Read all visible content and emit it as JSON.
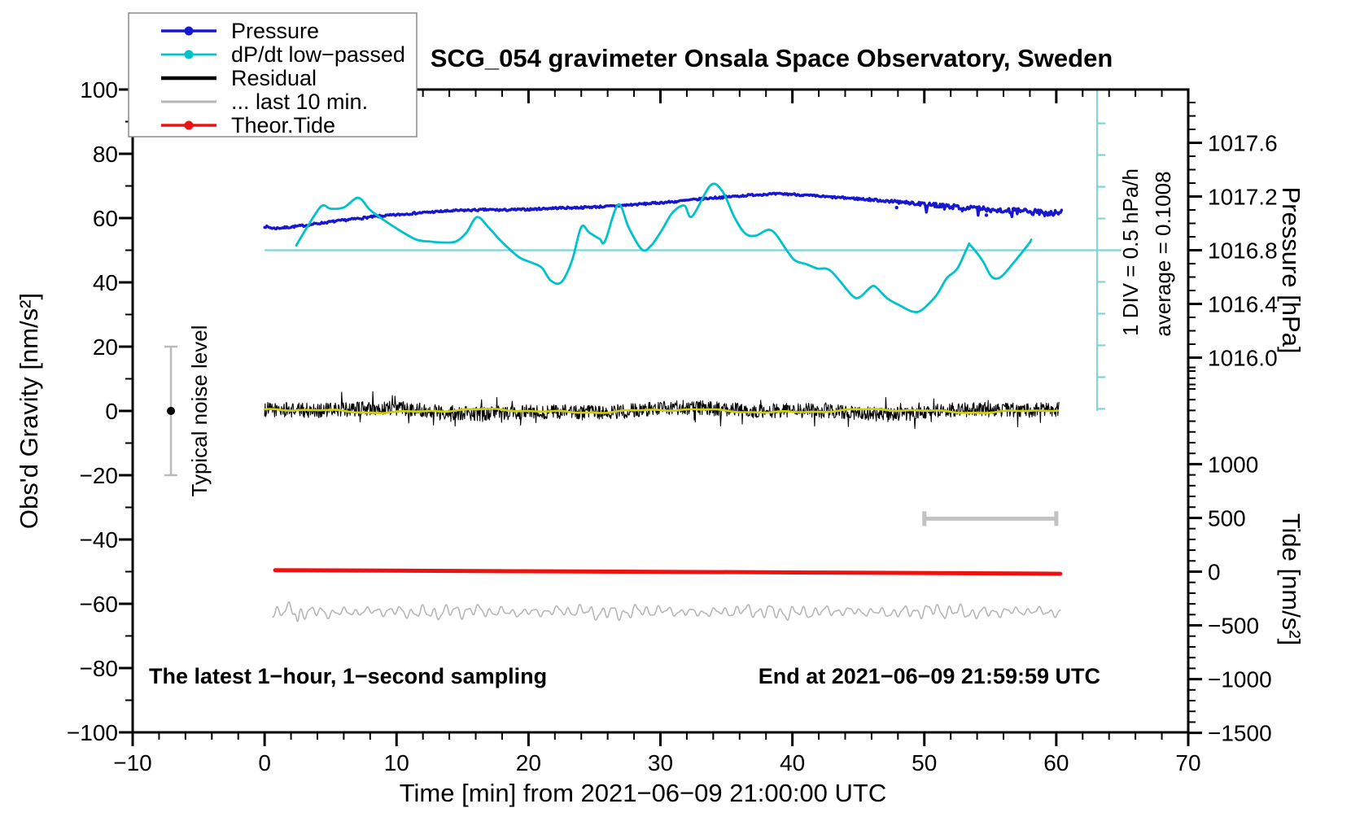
{
  "page": {
    "background": "#ffffff"
  },
  "chart_data": {
    "type": "line",
    "title": "SCG_054 gravimeter Onsala Space Observatory, Sweden",
    "x_axis": {
      "label": "Time [min] from 2021−06−09 21:00:00 UTC",
      "range": [
        -10,
        70
      ],
      "major_tick": 10,
      "minor_tick": 2,
      "tick_labels": [
        "−10",
        "0",
        "10",
        "20",
        "30",
        "40",
        "50",
        "60",
        "70"
      ]
    },
    "y_left_axis": {
      "label": "Obs'd Gravity [nm/s²]",
      "range": [
        -100,
        100
      ],
      "major_tick": 20,
      "minor_tick": 10,
      "tick_labels": [
        "100",
        "80",
        "60",
        "40",
        "20",
        "0",
        "−20",
        "−40",
        "−60",
        "−80",
        "−100"
      ]
    },
    "y_right_pressure_axis": {
      "label": "Pressure [hPa]",
      "tick_labels": [
        "1017.6",
        "1017.2",
        "1016.8",
        "1016.4",
        "1016.0"
      ],
      "tick_values": [
        1017.6,
        1017.2,
        1016.8,
        1016.4,
        1016.0
      ],
      "minor_tick": 0.1,
      "minor_range": [
        1015.8,
        1017.9
      ],
      "ref_pressure": 1016.8,
      "ref_gravity": 50,
      "gravity_per_hpa": 41.77
    },
    "y_right_tide_axis": {
      "label": "Tide [nm/s²]",
      "tick_labels": [
        "1000",
        "500",
        "0",
        "−500",
        "−1000",
        "−1500"
      ],
      "tick_values": [
        1000,
        500,
        0,
        -500,
        -1000,
        -1500
      ],
      "minor_tick": 100,
      "minor_range": [
        -1500,
        1900
      ],
      "ref_tide": 0,
      "ref_gravity": -50,
      "gravity_per_unit": 0.03344
    },
    "dpdt_scale": {
      "position_min": 63.1,
      "top_gravity": 100,
      "bottom_gravity": 0,
      "zero_gravity": 50,
      "tick_step_gravity": 9.87,
      "div_hpa_per_h": 0.5,
      "color": "#7ED4D6"
    },
    "noise_bar": {
      "label": "Typical noise level",
      "x_min": -7.1,
      "center_gravity": 0,
      "half_span_gravity": 20,
      "color": "#BBBBBB"
    },
    "window_bar": {
      "from_min": 50,
      "to_min": 60,
      "gravity": -33.5,
      "color": "#C2C2C2"
    },
    "annotations": {
      "div_label": "1 DIV = 0.5 hPa/h",
      "average_label": "average = 0.1008",
      "sampling_label": "The latest 1−hour, 1−second sampling",
      "end_label": "End at 2021−06−09 21:59:59 UTC"
    },
    "series": {
      "pressure": {
        "name": "Pressure",
        "color": "#1717D2",
        "unit": "hPa",
        "x_min": [
          0,
          0.7,
          1.5,
          3,
          4,
          5,
          6,
          7,
          8,
          9,
          10,
          11,
          12,
          13,
          14,
          15,
          16,
          17,
          18,
          19,
          20,
          21,
          22,
          23,
          24,
          25,
          26,
          27,
          28,
          29,
          30,
          31,
          32,
          33,
          34,
          35,
          36,
          37,
          38,
          39,
          40,
          41,
          42,
          43,
          44,
          45,
          46,
          47,
          48,
          49,
          50,
          51,
          52,
          53,
          54,
          55,
          56,
          57,
          58,
          59,
          60
        ],
        "hpa": [
          1016.977,
          1016.963,
          1016.968,
          1016.984,
          1016.999,
          1017.011,
          1017.023,
          1017.035,
          1017.047,
          1017.056,
          1017.063,
          1017.073,
          1017.08,
          1017.087,
          1017.092,
          1017.097,
          1017.099,
          1017.102,
          1017.099,
          1017.102,
          1017.104,
          1017.109,
          1017.114,
          1017.116,
          1017.118,
          1017.123,
          1017.126,
          1017.133,
          1017.14,
          1017.147,
          1017.154,
          1017.161,
          1017.171,
          1017.181,
          1017.19,
          1017.197,
          1017.204,
          1017.212,
          1017.217,
          1017.219,
          1017.217,
          1017.209,
          1017.202,
          1017.195,
          1017.19,
          1017.183,
          1017.176,
          1017.169,
          1017.159,
          1017.152,
          1017.142,
          1017.135,
          1017.126,
          1017.118,
          1017.111,
          1017.104,
          1017.097,
          1017.09,
          1017.085,
          1017.08,
          1017.078
        ],
        "stray_points_hpa": [
          [
            47.9,
            1017.118
          ],
          [
            54.7,
            1017.061
          ]
        ],
        "noise_grow_after_min": 44
      },
      "dpdt": {
        "name": "dP/dt low−passed",
        "color": "#00C2CA",
        "zero_gravity": 50,
        "gravity_units_per_div": 9.87,
        "div_hpa_per_h": 0.5,
        "x_min": [
          2.4,
          3.2,
          4.3,
          5.0,
          6.0,
          7.1,
          8.0,
          9.0,
          10.3,
          11.5,
          12.5,
          13.5,
          14.5,
          15.3,
          16.1,
          17.0,
          18.0,
          19.3,
          20.2,
          21.0,
          21.7,
          22.5,
          23.3,
          24.0,
          24.6,
          25.4,
          25.8,
          26.8,
          27.6,
          28.6,
          29.3,
          30.1,
          30.9,
          31.8,
          32.4,
          33.8,
          34.7,
          35.6,
          36.4,
          37.2,
          38.4,
          39.6,
          40.2,
          41.1,
          41.9,
          42.9,
          44.5,
          45.1,
          45.9,
          46.3,
          47.2,
          48.1,
          49.1,
          49.8,
          50.9,
          51.7,
          52.5,
          53.3,
          53.5,
          54.4,
          55.1,
          55.8,
          56.8,
          57.9,
          58.1
        ],
        "gravity": [
          51.5,
          57,
          63.7,
          62.9,
          63.3,
          66.3,
          62.5,
          59.5,
          56,
          53.3,
          52.7,
          52.4,
          52.7,
          55.5,
          60.3,
          57,
          52.5,
          47.8,
          46.2,
          44.6,
          40.5,
          40.1,
          46.8,
          57.2,
          55.5,
          53.5,
          52.8,
          64.2,
          57,
          50.2,
          51.5,
          56.2,
          61.6,
          63.9,
          60.5,
          70.2,
          68.3,
          60.3,
          55.3,
          54.5,
          56.2,
          49.8,
          46.8,
          45.6,
          44.3,
          43.6,
          36,
          35.4,
          38.4,
          38.6,
          35,
          32.9,
          30.9,
          31.4,
          35.9,
          41.3,
          44.3,
          51.2,
          51.5,
          46.8,
          41.8,
          41.7,
          46.3,
          51.9,
          53.3
        ]
      },
      "residual": {
        "name": "Residual",
        "color": "#000000",
        "center_gravity": 0,
        "noise_amplitude": 2.3,
        "spike_amplitude": 4.5,
        "x_range_min": [
          0,
          60.2
        ]
      },
      "residual_mean": {
        "color": "#CFCF0A",
        "center_gravity": 0,
        "amplitude": 0.8
      },
      "last10": {
        "name": "... last 10 min.",
        "color": "#B7B7B7",
        "center_gravity": -62.5,
        "amplitude": 2.6,
        "x_range_min": [
          0.6,
          60.3
        ]
      },
      "theor_tide": {
        "name": "Theor.Tide",
        "color": "#EE1111",
        "x_min": [
          0.8,
          30,
          60.3
        ],
        "gravity": [
          -49.55,
          -50.05,
          -50.65
        ]
      }
    },
    "legend": {
      "items": [
        {
          "label": "Pressure",
          "series": "pressure",
          "dot": true,
          "line_width": 3.5
        },
        {
          "label": "dP/dt low−passed",
          "series": "dpdt",
          "dot": true,
          "line_width": 2.8
        },
        {
          "label": "Residual",
          "series": "residual",
          "dot": false,
          "line_width": 4.5
        },
        {
          "label": "... last 10 min.",
          "series": "last10",
          "dot": false,
          "line_width": 3
        },
        {
          "label": "Theor.Tide",
          "series": "theor_tide",
          "dot": true,
          "line_width": 3.5
        }
      ]
    }
  }
}
